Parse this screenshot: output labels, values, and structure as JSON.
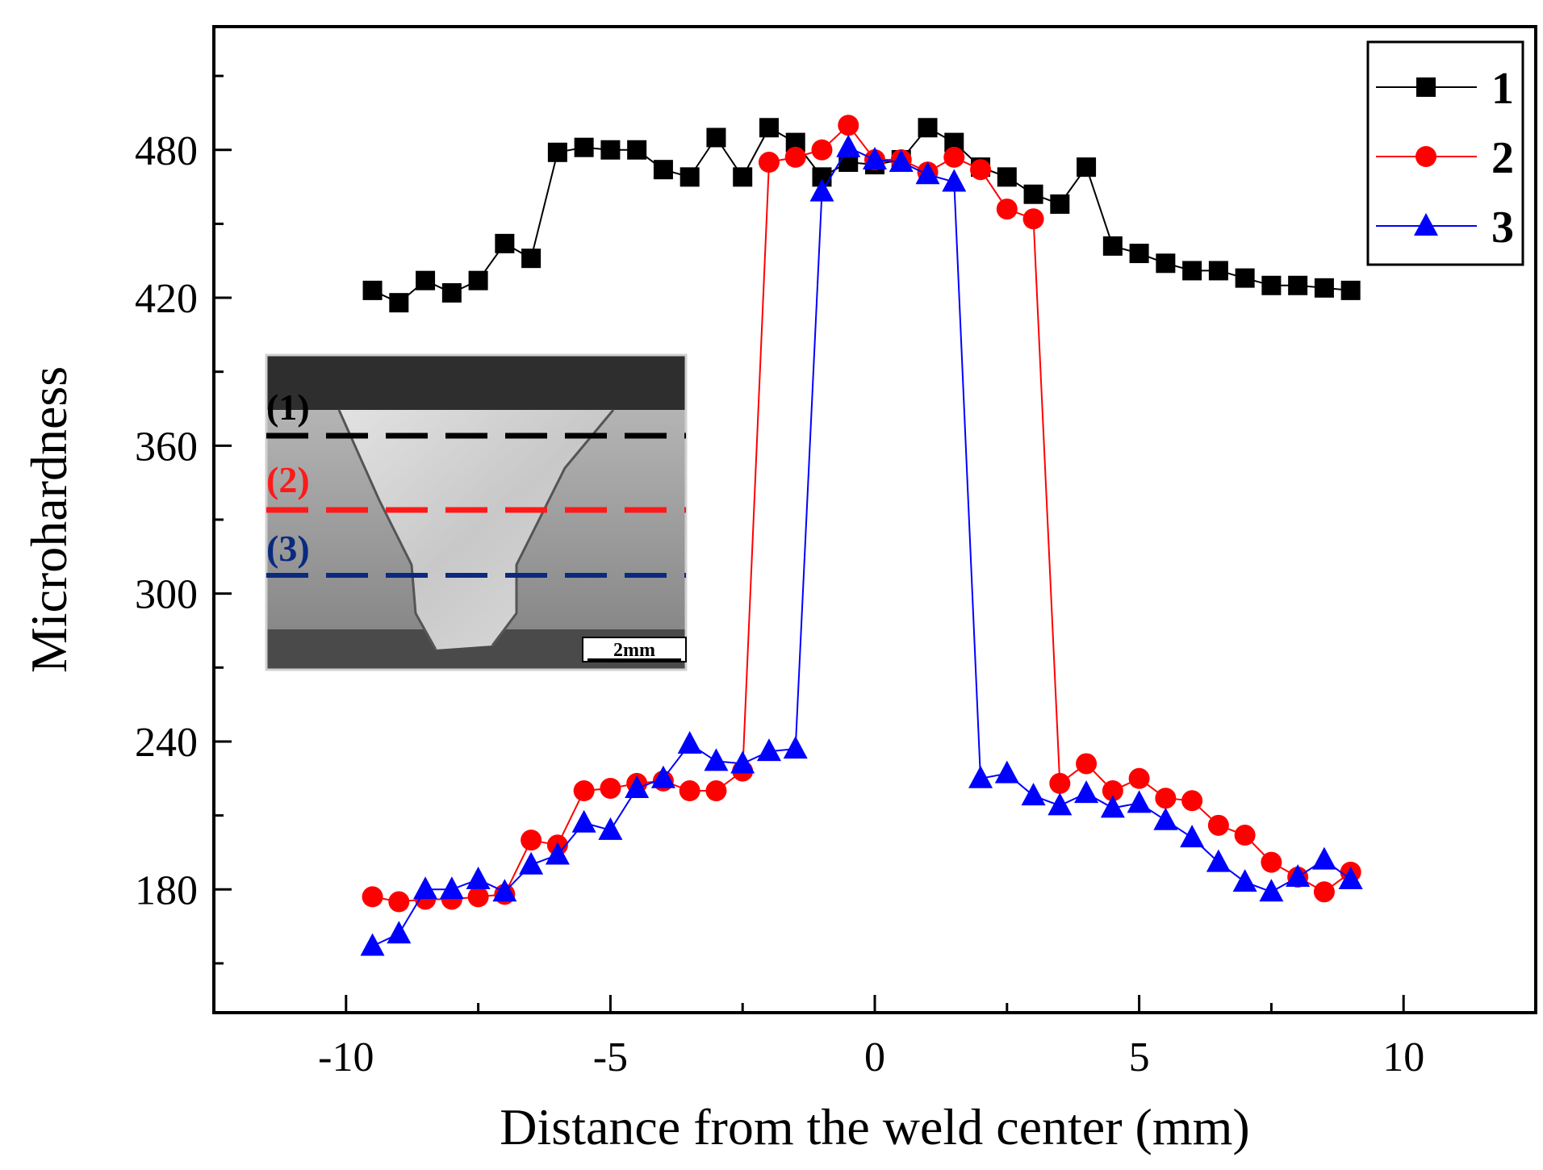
{
  "chart_data": {
    "type": "line",
    "title": "",
    "xlabel": "Distance from the weld center (mm)",
    "ylabel": "Microhardness",
    "xlim": [
      -12.5,
      12.5
    ],
    "ylim": [
      130,
      530
    ],
    "xticks": [
      -10,
      -5,
      0,
      5,
      10
    ],
    "yticks": [
      180,
      240,
      300,
      360,
      420,
      480
    ],
    "grid": false,
    "legend_position": "top-right",
    "series": [
      {
        "name": "1",
        "color": "#000000",
        "marker": "square",
        "x": [
          -9.5,
          -9,
          -8.5,
          -8,
          -7.5,
          -7,
          -6.5,
          -6,
          -5.5,
          -5,
          -4.5,
          -4,
          -3.5,
          -3,
          -2.5,
          -2,
          -1.5,
          -1,
          -0.5,
          0,
          0.5,
          1,
          1.5,
          2,
          2.5,
          3,
          3.5,
          4,
          4.5,
          5,
          5.5,
          6,
          6.5,
          7,
          7.5,
          8,
          8.5,
          9
        ],
        "values": [
          423,
          418,
          427,
          422,
          427,
          442,
          436,
          479,
          481,
          480,
          480,
          472,
          469,
          485,
          469,
          489,
          483,
          469,
          475,
          474,
          476,
          489,
          483,
          473,
          469,
          462,
          458,
          473,
          441,
          438,
          434,
          431,
          431,
          428,
          425,
          425,
          424,
          423
        ]
      },
      {
        "name": "2",
        "color": "#ff0000",
        "marker": "circle",
        "x": [
          -9.5,
          -9,
          -8.5,
          -8,
          -7.5,
          -7,
          -6.5,
          -6,
          -5.5,
          -5,
          -4.5,
          -4,
          -3.5,
          -3,
          -2.5,
          -2,
          -1.5,
          -1,
          -0.5,
          0,
          0.5,
          1,
          1.5,
          2,
          2.5,
          3,
          3.5,
          4,
          4.5,
          5,
          5.5,
          6,
          6.5,
          7,
          7.5,
          8,
          8.5,
          9
        ],
        "values": [
          177,
          175,
          176,
          176,
          177,
          178,
          200,
          198,
          220,
          221,
          223,
          224,
          220,
          220,
          228,
          475,
          477,
          480,
          490,
          476,
          476,
          471,
          477,
          472,
          456,
          452,
          223,
          231,
          220,
          225,
          217,
          216,
          206,
          202,
          191,
          185,
          179,
          187
        ]
      },
      {
        "name": "3",
        "color": "#0000ff",
        "marker": "triangle",
        "x": [
          -9.5,
          -9,
          -8.5,
          -8,
          -7.5,
          -7,
          -6.5,
          -6,
          -5.5,
          -5,
          -4.5,
          -4,
          -3.5,
          -3,
          -2.5,
          -2,
          -1.5,
          -1,
          -0.5,
          0,
          0.5,
          1,
          1.5,
          2,
          2.5,
          3,
          3.5,
          4,
          4.5,
          5,
          5.5,
          6,
          6.5,
          7,
          7.5,
          8,
          8.5,
          9
        ],
        "values": [
          157,
          162,
          180,
          180,
          184,
          179,
          190,
          194,
          207,
          204,
          221,
          225,
          239,
          232,
          231,
          236,
          237,
          463,
          481,
          476,
          475,
          470,
          467,
          225,
          227,
          218,
          214,
          219,
          213,
          215,
          208,
          201,
          191,
          183,
          179,
          185,
          192,
          184
        ]
      }
    ]
  },
  "inset": {
    "line_labels": [
      "(1)",
      "(2)",
      "(3)"
    ],
    "scale_bar": "2mm"
  }
}
